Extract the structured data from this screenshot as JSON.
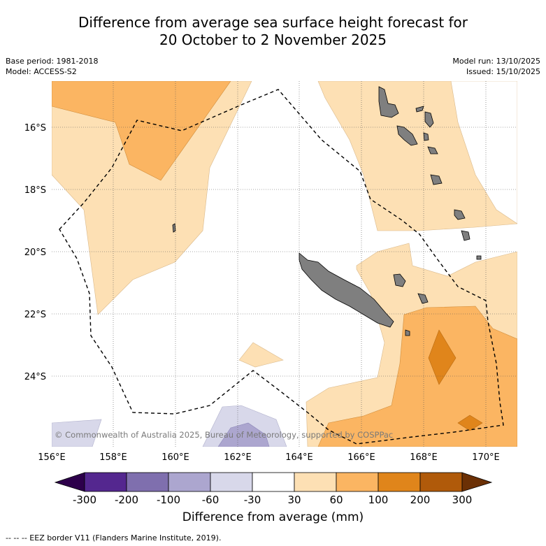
{
  "title_line1": "Difference from average sea surface height forecast for",
  "title_line2": "20 October to 2 November 2025",
  "meta_left": [
    "Base period: 1981-2018",
    "Model: ACCESS-S2"
  ],
  "meta_right": [
    "Model run: 13/10/2025",
    "Issued: 15/10/2025"
  ],
  "lat_labels": [
    "16°S",
    "18°S",
    "20°S",
    "22°S",
    "24°S"
  ],
  "lon_labels": [
    "156°E",
    "158°E",
    "160°E",
    "162°E",
    "164°E",
    "166°E",
    "168°E",
    "170°E"
  ],
  "copyright": "© Commonwealth of Australia 2025, Bureau of Meteorology, supported by COSPPac",
  "colorbar": {
    "title": "Difference from average (mm)",
    "ticks": [
      "-300",
      "-200",
      "-100",
      "-60",
      "-30",
      "30",
      "60",
      "100",
      "200",
      "300"
    ],
    "colors": [
      "#54278f",
      "#7f6fae",
      "#aca6cf",
      "#d8d8ea",
      "#ffffff",
      "#fde0b4",
      "#fbb562",
      "#e0851b",
      "#b05a0a"
    ],
    "under_color": "#2d004b",
    "over_color": "#6b3005"
  },
  "footnote": "--  --  -- EEZ border V11 (Flanders Marine Institute, 2019)."
}
